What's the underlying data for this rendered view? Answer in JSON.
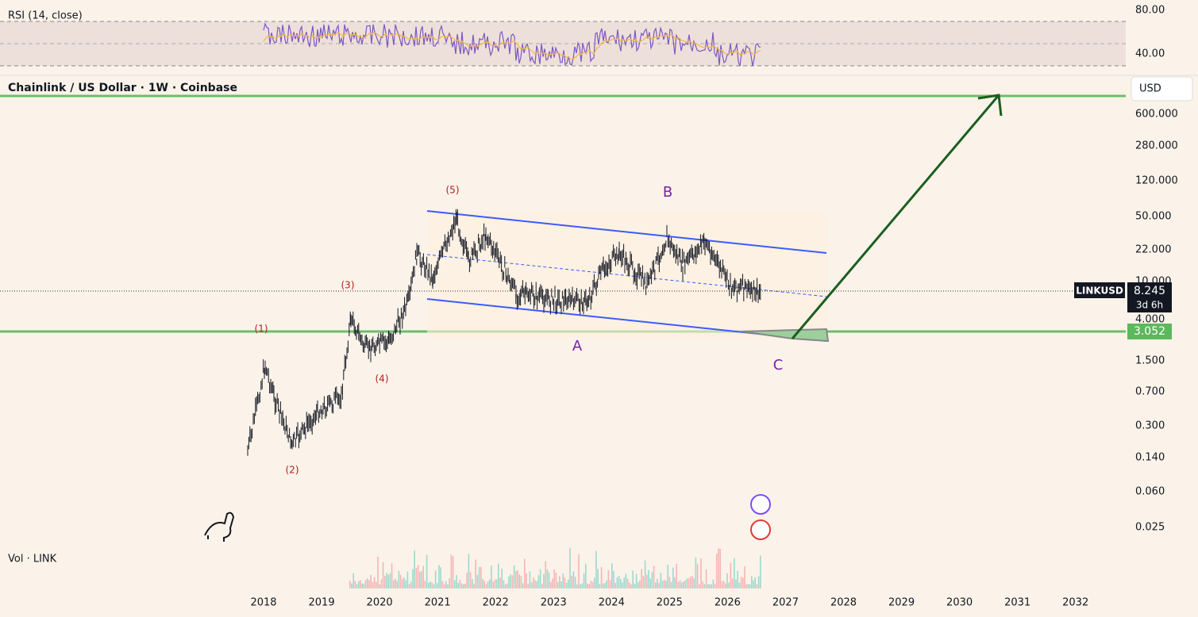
{
  "rsi": {
    "label": "RSI (14, close)",
    "ticks": [
      "80.00",
      "40.00"
    ]
  },
  "header": {
    "title": "Chainlink / US Dollar · 1W · Coinbase",
    "currency": "USD"
  },
  "price_axis": [
    "600.000",
    "280.000",
    "120.000",
    "50.000",
    "22.000",
    "10.000",
    "4.000",
    "1.500",
    "0.700",
    "0.300",
    "0.140",
    "0.060",
    "0.025"
  ],
  "tags": {
    "symbol": "LINKUSD",
    "price": "8.245",
    "countdown": "3d 6h",
    "level": "3.052"
  },
  "waves": [
    "(1)",
    "(2)",
    "(3)",
    "(4)",
    "(5)",
    "A",
    "B",
    "C"
  ],
  "volume": {
    "label": "Vol · LINK"
  },
  "time_axis": [
    "2018",
    "2019",
    "2020",
    "2021",
    "2022",
    "2023",
    "2024",
    "2025",
    "2026",
    "2027",
    "2028",
    "2029",
    "2030",
    "2031",
    "2032"
  ]
}
